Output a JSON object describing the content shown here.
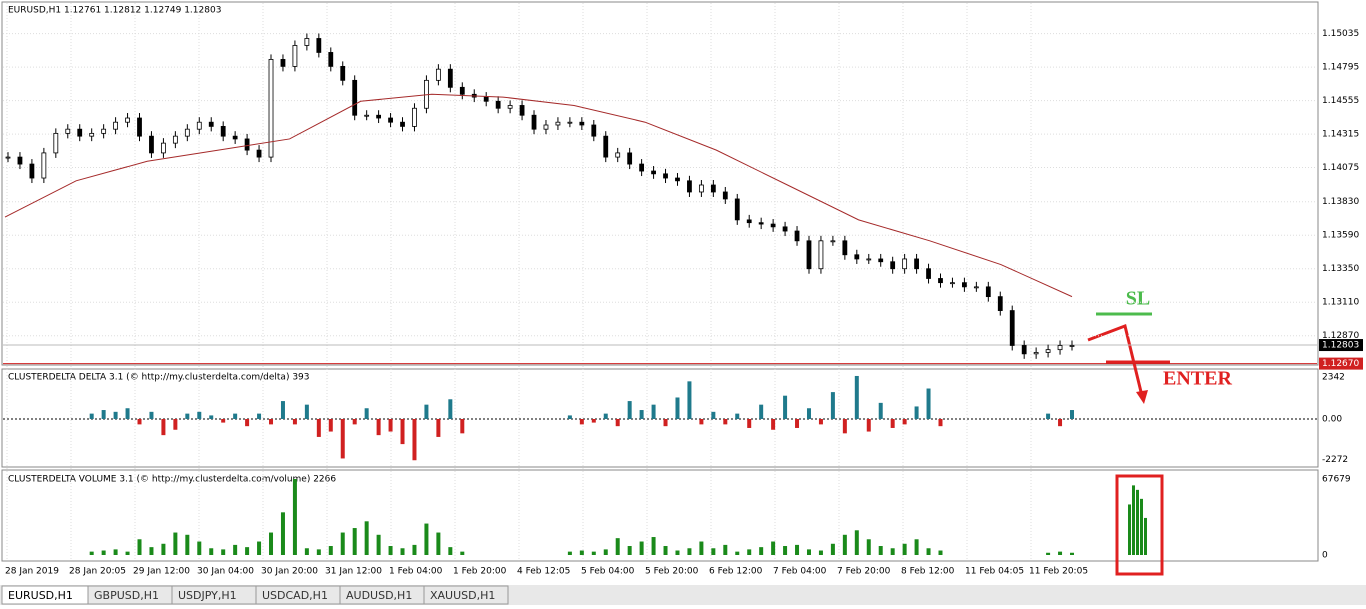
{
  "header": "EURUSD,H1  1.12761 1.12812 1.12749 1.12803",
  "chart": {
    "ylim": [
      1.1266,
      1.1524
    ],
    "yticks": [
      1.15035,
      1.14795,
      1.14555,
      1.14315,
      1.14075,
      {
        "value": 1.1383,
        "label": "1.13830"
      },
      {
        "value": 1.1359,
        "label": "1.13590"
      },
      {
        "value": 1.1335,
        "label": "1.13350"
      },
      {
        "value": 1.1311,
        "label": "1.13110"
      },
      {
        "value": 1.1287,
        "label": "1.12870"
      }
    ],
    "price_tags": [
      1.12803,
      {
        "value": 1.1267,
        "label": "1.12670"
      }
    ],
    "closes": [
      1.1415,
      1.141,
      1.14,
      1.1418,
      1.1432,
      1.1435,
      1.143,
      1.1432,
      1.1435,
      1.144,
      1.1443,
      1.143,
      1.1418,
      1.1425,
      1.143,
      1.1435,
      1.144,
      1.1437,
      1.143,
      1.1428,
      1.142,
      1.1415,
      1.1485,
      1.148,
      1.1495,
      1.15,
      1.149,
      1.148,
      1.147,
      1.1445,
      1.1445,
      1.1443,
      1.144,
      1.1437,
      1.145,
      1.147,
      1.1478,
      1.1465,
      1.146,
      1.1458,
      1.1455,
      1.145,
      1.1452,
      1.1445,
      1.1435,
      1.1438,
      1.144,
      1.144,
      1.1438,
      1.143,
      1.1415,
      1.1418,
      1.141,
      1.1405,
      1.1403,
      1.14,
      1.1398,
      1.139,
      1.1395,
      1.139,
      1.1385,
      1.137,
      1.1368,
      1.1367,
      1.1365,
      1.1362,
      1.1355,
      1.1335,
      1.1355,
      1.1355,
      1.1345,
      1.1342,
      1.1342,
      1.134,
      1.1335,
      1.1342,
      1.1335,
      1.1328,
      1.1325,
      1.1325,
      1.1322,
      1.1322,
      1.1315,
      1.1305,
      1.128,
      1.1274,
      1.1275,
      1.1277,
      1.128,
      1.128
    ],
    "moving_average": [
      1.1372,
      1.1398,
      1.1412,
      1.142,
      1.1428,
      1.1455,
      1.146,
      1.1458,
      1.1452,
      1.144,
      1.142,
      1.1395,
      1.137,
      1.1355,
      1.1338,
      1.1315
    ]
  },
  "delta": {
    "label": "CLUSTERDELTA DELTA 3.1 (© http://my.clusterdelta.com/delta) 393",
    "ylim": [
      -2677,
      2677
    ],
    "yticks": [
      2342,
      {
        "value": 0,
        "label": "0.00"
      },
      -2272
    ],
    "values": [
      null,
      null,
      null,
      null,
      null,
      null,
      null,
      300,
      500,
      400,
      600,
      -300,
      400,
      -900,
      -600,
      300,
      400,
      200,
      -200,
      300,
      -400,
      300,
      -300,
      1000,
      -300,
      800,
      -1000,
      -700,
      -2200,
      -300,
      600,
      -900,
      -700,
      -1400,
      -2300,
      800,
      -1000,
      1100,
      -800,
      null,
      null,
      null,
      null,
      null,
      null,
      null,
      null,
      200,
      -300,
      -200,
      300,
      -400,
      1000,
      500,
      800,
      -400,
      1200,
      2100,
      -300,
      400,
      -300,
      300,
      -500,
      800,
      -600,
      1300,
      -500,
      600,
      -300,
      1500,
      -800,
      2400,
      -700,
      900,
      -500,
      -300,
      700,
      1700,
      -400,
      null,
      null,
      null,
      null,
      null,
      null,
      null,
      null,
      300,
      -400,
      500
    ]
  },
  "volume": {
    "label": "CLUSTERDELTA VOLUME 3.1 (© http://my.clusterdelta.com/volume) 2266",
    "ylim": [
      -4453,
      73912
    ],
    "yticks": [
      67679,
      0
    ],
    "values": [
      null,
      null,
      null,
      null,
      null,
      null,
      null,
      3000,
      4000,
      5000,
      3000,
      14000,
      7000,
      10000,
      20000,
      18000,
      12000,
      6000,
      5000,
      9000,
      7000,
      12000,
      20000,
      38000,
      67679,
      6000,
      5000,
      8000,
      20000,
      24000,
      30000,
      18000,
      8000,
      6000,
      9000,
      28000,
      20000,
      7000,
      3000,
      null,
      null,
      null,
      null,
      null,
      null,
      null,
      null,
      3000,
      4000,
      3000,
      5000,
      15000,
      8000,
      12000,
      16000,
      8000,
      4000,
      6000,
      12000,
      6000,
      9000,
      3000,
      5000,
      7000,
      12000,
      8000,
      9000,
      5000,
      4000,
      10000,
      18000,
      22000,
      14000,
      8000,
      6000,
      10000,
      14000,
      6000,
      4000,
      null,
      null,
      null,
      null,
      null,
      null,
      null,
      null,
      2000,
      3000,
      2000
    ],
    "annotation_values": [
      45000,
      62000,
      58000,
      50000,
      33000
    ]
  },
  "time_axis": [
    "28 Jan 2019",
    "28 Jan 20:05",
    "29 Jan 12:00",
    "30 Jan 04:00",
    "30 Jan 20:00",
    "31 Jan 12:00",
    "1 Feb 04:00",
    "1 Feb 20:00",
    "4 Feb 12:05",
    "5 Feb 04:00",
    "5 Feb 20:00",
    "6 Feb 12:00",
    "7 Feb 04:00",
    "7 Feb 20:00",
    "8 Feb 12:00",
    "11 Feb 04:05",
    "11 Feb 20:05"
  ],
  "annotations": {
    "sl": "SL",
    "enter": "ENTER"
  },
  "tabs": [
    "EURUSD,H1",
    "GBPUSD,H1",
    "USDJPY,H1",
    "USDCAD,H1",
    "AUDUSD,H1",
    "XAUUSD,H1"
  ]
}
